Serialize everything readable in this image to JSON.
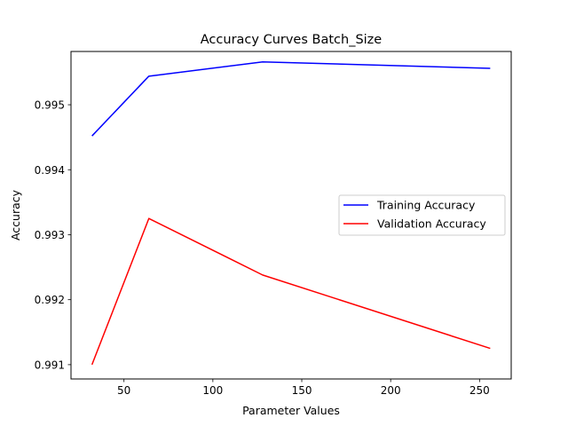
{
  "chart_data": {
    "type": "line",
    "title": "Accuracy Curves Batch_Size",
    "xlabel": "Parameter Values",
    "ylabel": "Accuracy",
    "x": [
      32,
      64,
      128,
      256
    ],
    "xlim": [
      20.2,
      267.8
    ],
    "ylim": [
      0.99078,
      0.99582
    ],
    "xticks": [
      50,
      100,
      150,
      200,
      250
    ],
    "yticks": [
      0.991,
      0.992,
      0.993,
      0.994,
      0.995
    ],
    "xtick_labels": [
      "50",
      "100",
      "150",
      "200",
      "250"
    ],
    "ytick_labels": [
      "0.991",
      "0.992",
      "0.993",
      "0.994",
      "0.995"
    ],
    "grid": false,
    "legend_position": "center-right",
    "series": [
      {
        "name": "Training Accuracy",
        "color": "#0000ff",
        "values": [
          0.99452,
          0.99544,
          0.99566,
          0.99556
        ]
      },
      {
        "name": "Validation Accuracy",
        "color": "#ff0000",
        "values": [
          0.991,
          0.99325,
          0.99238,
          0.99125
        ]
      }
    ]
  }
}
